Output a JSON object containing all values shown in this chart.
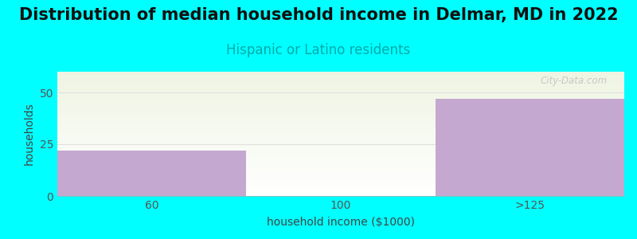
{
  "title": "Distribution of median household income in Delmar, MD in 2022",
  "subtitle": "Hispanic or Latino residents",
  "categories": [
    "60",
    "100",
    ">125"
  ],
  "values": [
    22,
    0,
    47
  ],
  "bar_color": "#c4a8d0",
  "background_color": "#00ffff",
  "plot_bg_top": "#eef4e2",
  "plot_bg_bottom": "#ffffff",
  "xlabel": "household income ($1000)",
  "ylabel": "households",
  "ylim": [
    0,
    60
  ],
  "yticks": [
    0,
    25,
    50
  ],
  "title_fontsize": 15,
  "subtitle_fontsize": 12,
  "subtitle_color": "#00aaaa",
  "axis_label_fontsize": 10,
  "tick_fontsize": 10,
  "watermark": "City-Data.com",
  "watermark_color": "#c0c0c0"
}
